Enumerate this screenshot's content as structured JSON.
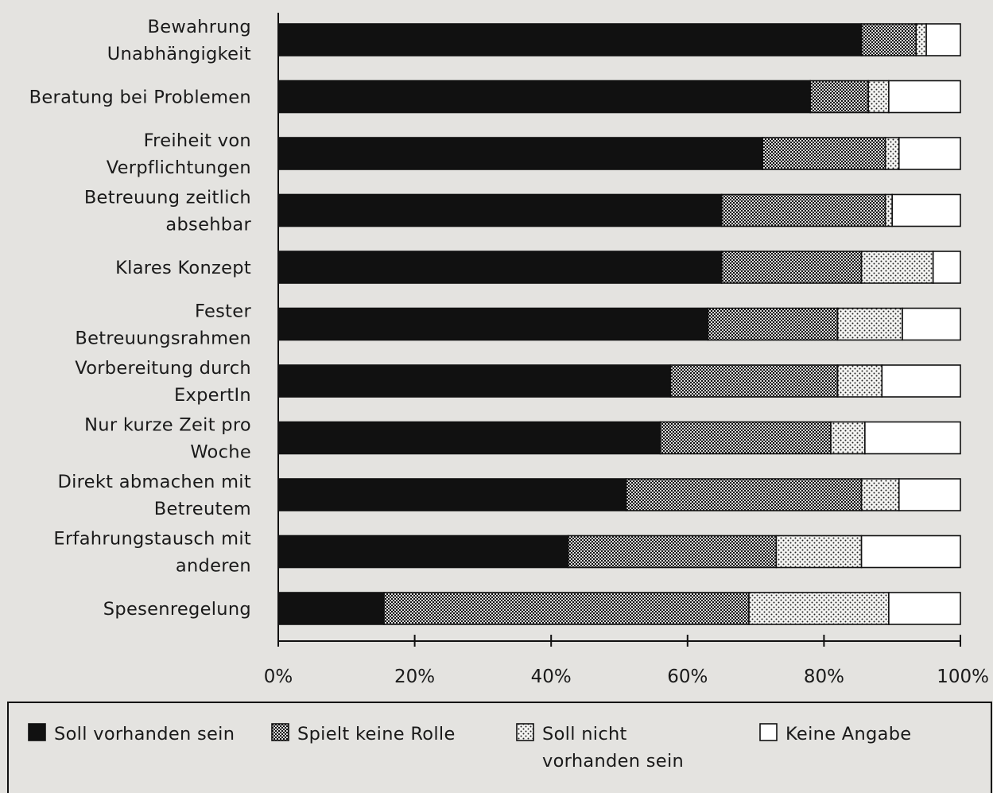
{
  "chart_data": {
    "type": "bar",
    "orientation": "horizontal",
    "stacked": true,
    "categories": [
      [
        "Bewahrung",
        "Unabhängigkeit"
      ],
      [
        "Beratung bei Problemen"
      ],
      [
        "Freiheit von",
        "Verpflichtungen"
      ],
      [
        "Betreuung zeitlich",
        "absehbar"
      ],
      [
        "Klares Konzept"
      ],
      [
        "Fester",
        "Betreuungsrahmen"
      ],
      [
        "Vorbereitung durch",
        "ExpertIn"
      ],
      [
        "Nur kurze Zeit pro",
        "Woche"
      ],
      [
        "Direkt abmachen mit",
        "Betreutem"
      ],
      [
        "Erfahrungstausch mit",
        "anderen"
      ],
      [
        "Spesenregelung"
      ]
    ],
    "series": [
      {
        "name": "Soll vorhanden sein",
        "pattern": "solid",
        "color": "#111111",
        "values": [
          85.5,
          78,
          71,
          65,
          65,
          63,
          57.5,
          56,
          51,
          42.5,
          15.5
        ]
      },
      {
        "name": "Spielt keine Rolle",
        "pattern": "dense-dots",
        "color": "#555555",
        "values": [
          8,
          8.5,
          18,
          24,
          20.5,
          19,
          24.5,
          25,
          34.5,
          30.5,
          53.5
        ]
      },
      {
        "name": "Soll nicht vorhanden sein",
        "pattern": "sparse-dots",
        "color": "#bbbbbb",
        "values": [
          1.5,
          3,
          2,
          1,
          10.5,
          9.5,
          6.5,
          5,
          5.5,
          12.5,
          20.5
        ]
      },
      {
        "name": "Keine Angabe",
        "pattern": "white",
        "color": "#ffffff",
        "values": [
          5,
          10.5,
          9,
          10,
          4,
          8.5,
          11.5,
          14,
          9,
          14.5,
          10.5
        ]
      }
    ],
    "xticks": [
      "0%",
      "20%",
      "40%",
      "60%",
      "80%",
      "100%"
    ],
    "xlim": [
      0,
      100
    ],
    "legend_position": "bottom",
    "legend_items": [
      [
        "Soll vorhanden sein"
      ],
      [
        "Spielt keine Rolle"
      ],
      [
        "Soll nicht",
        "vorhanden sein"
      ],
      [
        "Keine Angabe"
      ]
    ],
    "title": "",
    "xlabel": "",
    "ylabel": ""
  }
}
